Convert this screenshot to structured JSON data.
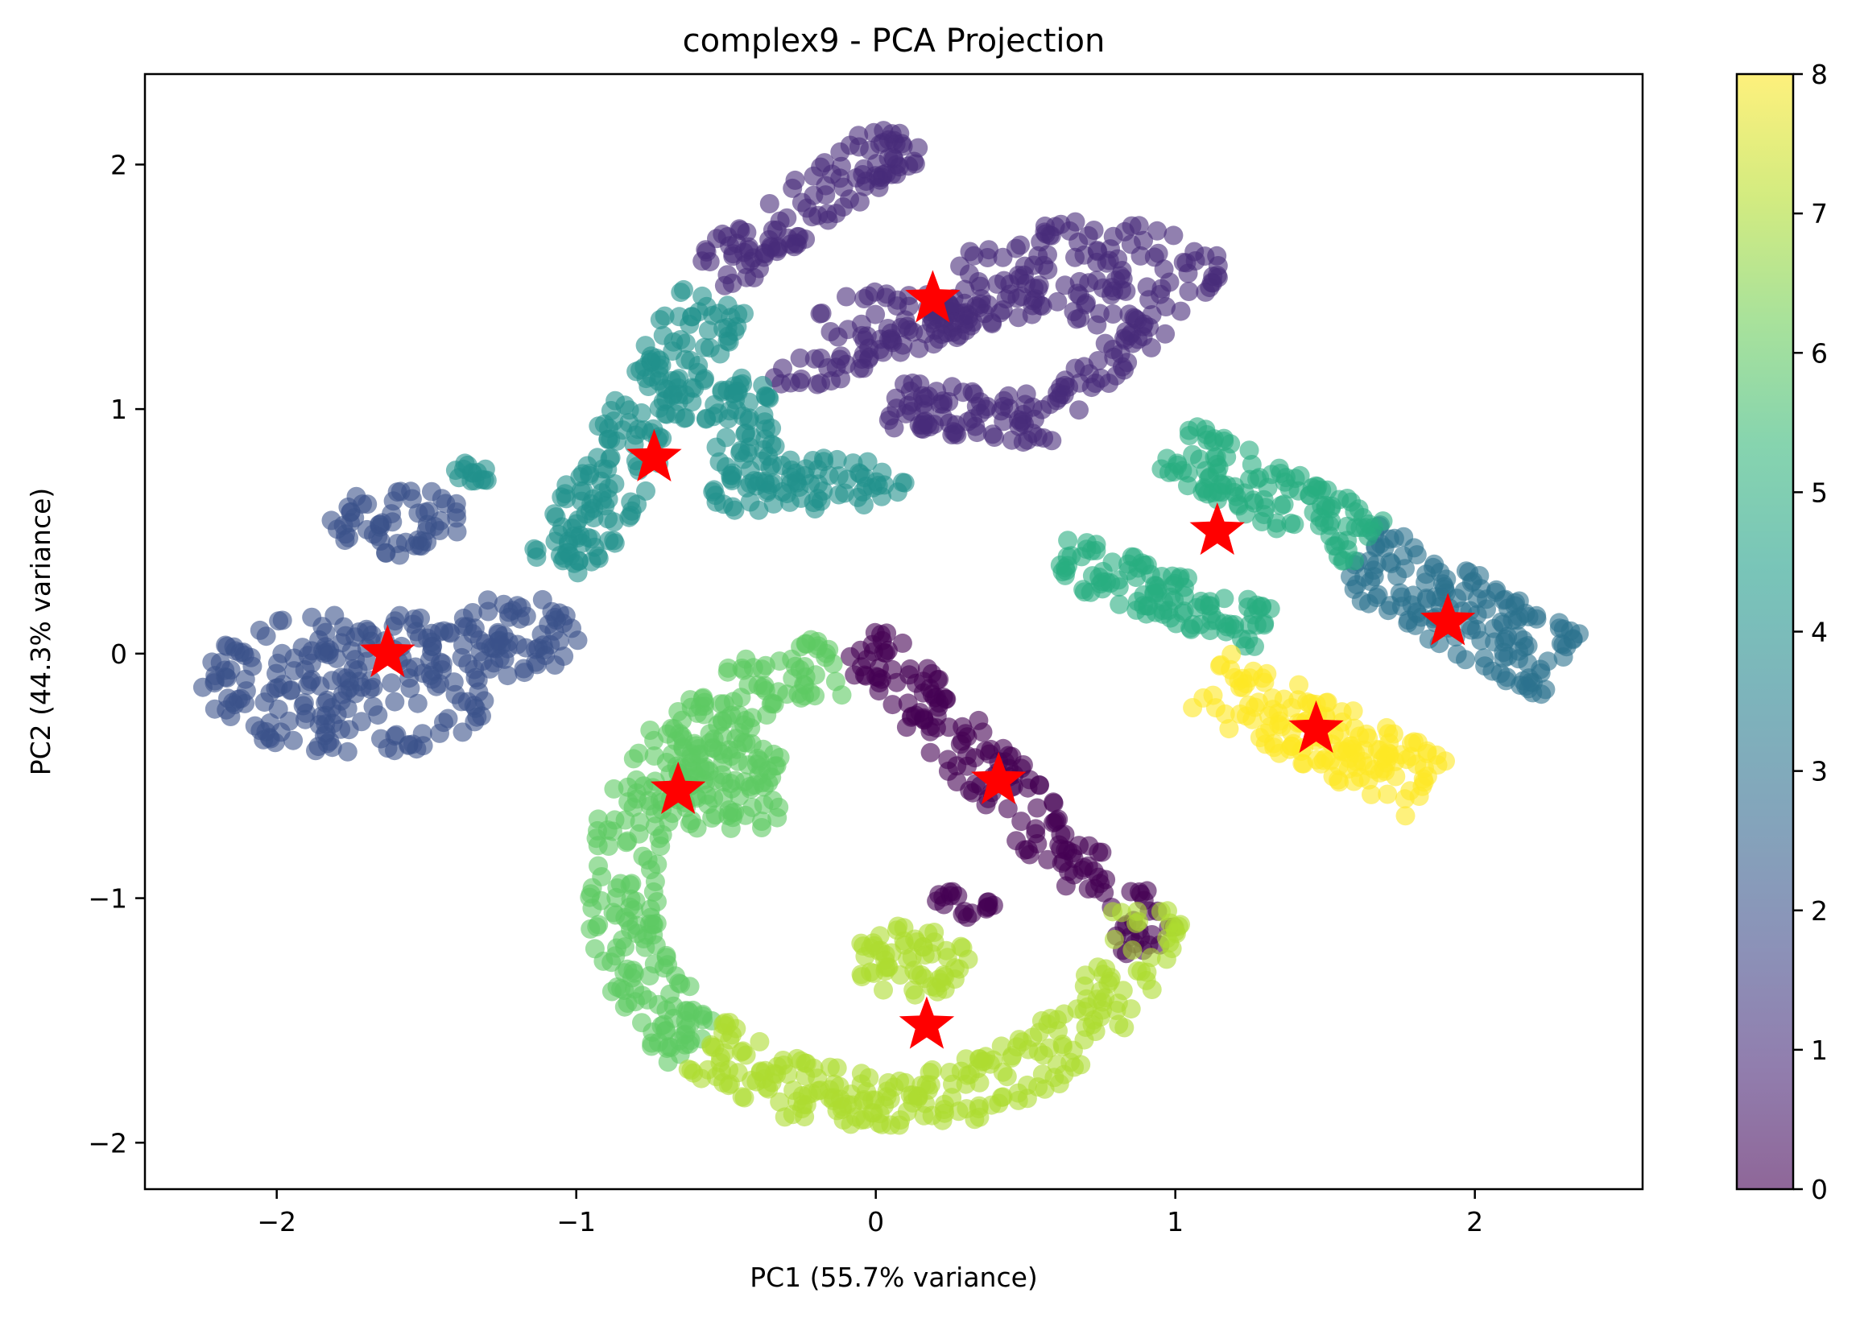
{
  "chart_data": {
    "type": "scatter",
    "title": "complex9 - PCA Projection",
    "xlabel": "PC1 (55.7% variance)",
    "ylabel": "PC2 (44.3% variance)",
    "xlim": [
      -2.44,
      2.56
    ],
    "ylim": [
      -2.19,
      2.37
    ],
    "xticks": [
      -2,
      -1,
      0,
      1,
      2
    ],
    "yticks": [
      -2,
      -1,
      0,
      1,
      2
    ],
    "xtick_labels": [
      "−2",
      "−1",
      "0",
      "1",
      "2"
    ],
    "ytick_labels": [
      "−2",
      "−1",
      "0",
      "1",
      "2"
    ],
    "grid": false,
    "point_alpha": 0.6,
    "colorbar": {
      "colormap": "viridis",
      "range": [
        0,
        8
      ],
      "ticks": [
        0,
        1,
        2,
        3,
        4,
        5,
        6,
        7,
        8
      ],
      "tick_labels": [
        "0",
        "1",
        "2",
        "3",
        "4",
        "5",
        "6",
        "7",
        "8"
      ]
    },
    "clusters": [
      {
        "label": 0,
        "color": "#440154",
        "shape": "line",
        "from": [
          -0.05,
          0.05
        ],
        "to": [
          0.95,
          -1.2
        ],
        "width": 0.22,
        "n": 170
      },
      {
        "label": 0,
        "color": "#440154",
        "shape": "blob",
        "center": [
          0.3,
          -1.02
        ],
        "rx": 0.11,
        "ry": 0.06,
        "n": 18
      },
      {
        "label": 1,
        "color": "#472c7a",
        "shape": "line",
        "from": [
          -0.55,
          1.55
        ],
        "to": [
          0.1,
          2.12
        ],
        "width": 0.22,
        "n": 110
      },
      {
        "label": 1,
        "color": "#472c7a",
        "shape": "line",
        "from": [
          -0.35,
          1.1
        ],
        "to": [
          0.35,
          1.4
        ],
        "width": 0.14,
        "n": 55
      },
      {
        "label": 1,
        "color": "#472c7a",
        "shape": "blob",
        "center": [
          0.1,
          1.37
        ],
        "rx": 0.3,
        "ry": 0.12,
        "n": 55
      },
      {
        "label": 1,
        "color": "#472c7a",
        "shape": "blob",
        "center": [
          0.72,
          1.55
        ],
        "rx": 0.45,
        "ry": 0.22,
        "n": 130
      },
      {
        "label": 1,
        "color": "#472c7a",
        "shape": "line",
        "from": [
          0.92,
          1.35
        ],
        "to": [
          0.62,
          1.02
        ],
        "width": 0.14,
        "n": 40
      },
      {
        "label": 1,
        "color": "#472c7a",
        "shape": "line",
        "from": [
          0.05,
          1.02
        ],
        "to": [
          0.6,
          0.95
        ],
        "width": 0.2,
        "n": 80
      },
      {
        "label": 2,
        "color": "#3b528b",
        "shape": "blob",
        "center": [
          -1.75,
          -0.12
        ],
        "rx": 0.5,
        "ry": 0.3,
        "n": 210
      },
      {
        "label": 2,
        "color": "#3b528b",
        "shape": "blob",
        "center": [
          -1.2,
          0.07
        ],
        "rx": 0.22,
        "ry": 0.17,
        "n": 60
      },
      {
        "label": 2,
        "color": "#3b528b",
        "shape": "blob",
        "center": [
          -1.6,
          0.55
        ],
        "rx": 0.22,
        "ry": 0.15,
        "n": 55
      },
      {
        "label": 3,
        "color": "#2c728e",
        "shape": "line",
        "from": [
          1.6,
          0.4
        ],
        "to": [
          2.3,
          -0.05
        ],
        "width": 0.32,
        "n": 150
      },
      {
        "label": 4,
        "color": "#21918c",
        "shape": "line",
        "from": [
          -1.05,
          0.35
        ],
        "to": [
          -0.55,
          1.45
        ],
        "width": 0.26,
        "n": 180
      },
      {
        "label": 4,
        "color": "#21918c",
        "shape": "blob",
        "center": [
          -0.45,
          0.85
        ],
        "rx": 0.13,
        "ry": 0.3,
        "n": 70
      },
      {
        "label": 4,
        "color": "#21918c",
        "shape": "blob",
        "center": [
          -0.2,
          0.7
        ],
        "rx": 0.3,
        "ry": 0.11,
        "n": 60
      },
      {
        "label": 4,
        "color": "#21918c",
        "shape": "blob",
        "center": [
          -1.35,
          0.72
        ],
        "rx": 0.07,
        "ry": 0.07,
        "n": 14
      },
      {
        "label": 5,
        "color": "#28ae80",
        "shape": "line",
        "from": [
          0.6,
          0.4
        ],
        "to": [
          1.3,
          0.1
        ],
        "width": 0.2,
        "n": 110
      },
      {
        "label": 5,
        "color": "#28ae80",
        "shape": "line",
        "from": [
          1.0,
          0.85
        ],
        "to": [
          1.65,
          0.45
        ],
        "width": 0.24,
        "n": 120
      },
      {
        "label": 6,
        "color": "#5ec962",
        "shape": "arc",
        "center": [
          0.03,
          -0.95
        ],
        "rx": 0.88,
        "ry": 0.92,
        "a0": 100,
        "a1": 225,
        "width": 0.2,
        "n": 260
      },
      {
        "label": 6,
        "color": "#5ec962",
        "shape": "blob",
        "center": [
          -0.48,
          -0.55
        ],
        "rx": 0.22,
        "ry": 0.2,
        "n": 80
      },
      {
        "label": 7,
        "color": "#addc30",
        "shape": "arc",
        "center": [
          0.03,
          -0.95
        ],
        "rx": 0.88,
        "ry": 0.88,
        "a0": 225,
        "a1": 355,
        "width": 0.2,
        "n": 250
      },
      {
        "label": 7,
        "color": "#addc30",
        "shape": "blob",
        "center": [
          0.12,
          -1.25
        ],
        "rx": 0.2,
        "ry": 0.15,
        "n": 60
      },
      {
        "label": 8,
        "color": "#fde725",
        "shape": "line",
        "from": [
          1.1,
          -0.1
        ],
        "to": [
          1.85,
          -0.55
        ],
        "width": 0.28,
        "n": 150
      }
    ],
    "centroids": [
      {
        "x": 0.19,
        "y": 1.45
      },
      {
        "x": -0.74,
        "y": 0.8
      },
      {
        "x": 1.14,
        "y": 0.5
      },
      {
        "x": -1.63,
        "y": 0.0
      },
      {
        "x": 1.91,
        "y": 0.13
      },
      {
        "x": 1.47,
        "y": -0.31
      },
      {
        "x": -0.66,
        "y": -0.56
      },
      {
        "x": 0.41,
        "y": -0.52
      },
      {
        "x": 0.17,
        "y": -1.52
      }
    ],
    "centroid_color": "#ff0000"
  }
}
